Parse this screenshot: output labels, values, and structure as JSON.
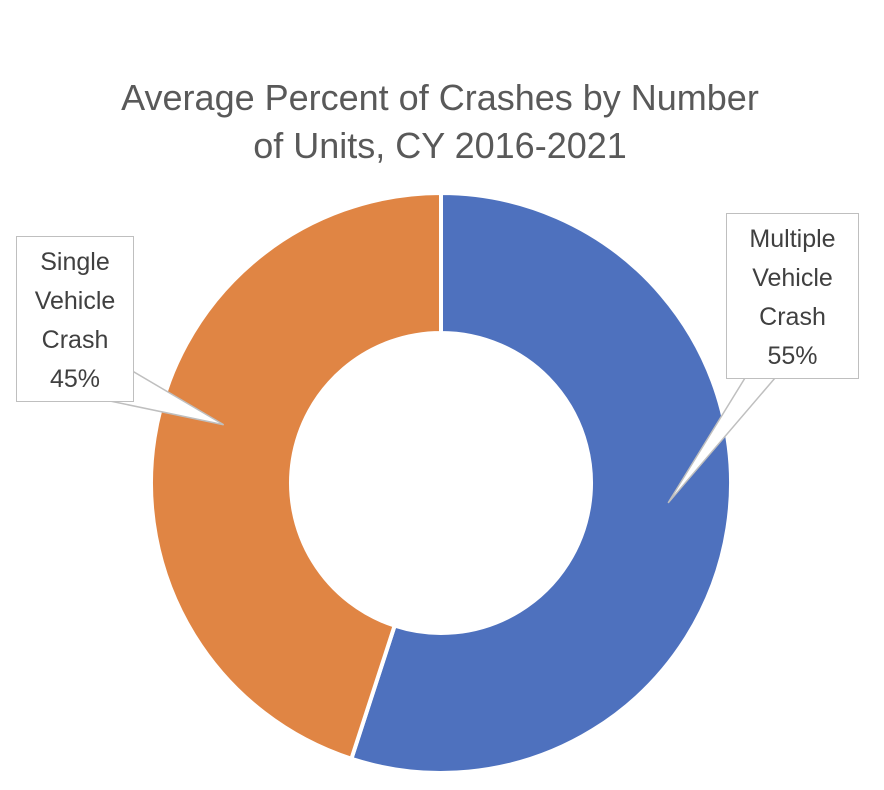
{
  "header": {
    "cut_off_text": ""
  },
  "chart_data": {
    "type": "pie",
    "variant": "donut",
    "title": [
      "Average Percent of Crashes by Number",
      "of Units, CY 2016-2021"
    ],
    "series": [
      {
        "name": "",
        "slices": [
          {
            "label": [
              "Multiple",
              "Vehicle",
              "Crash"
            ],
            "value": 55,
            "display": "55%",
            "color": "#4E71BE"
          },
          {
            "label": [
              "Single",
              "Vehicle",
              "Crash"
            ],
            "value": 45,
            "display": "45%",
            "color": "#E08544"
          }
        ]
      }
    ],
    "legend": "none",
    "data_labels": "callouts"
  }
}
